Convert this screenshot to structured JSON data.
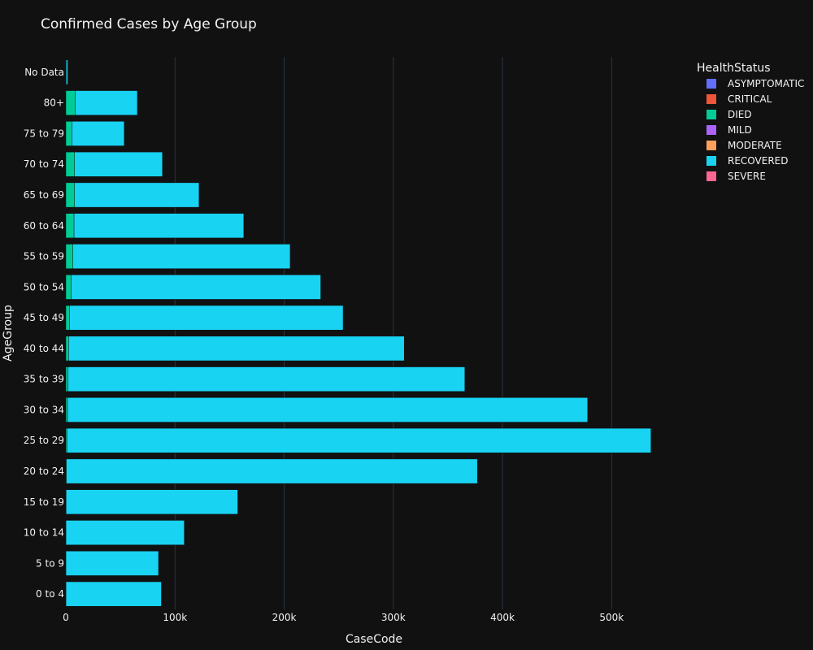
{
  "chart_data": {
    "type": "bar",
    "orientation": "horizontal",
    "barmode": "stack",
    "title": "Confirmed Cases by Age Group",
    "xlabel": "CaseCode",
    "ylabel": "AgeGroup",
    "xlim": [
      0,
      537000
    ],
    "x_ticks": [
      0,
      100000,
      200000,
      300000,
      400000,
      500000
    ],
    "x_tick_labels": [
      "0",
      "100k",
      "200k",
      "300k",
      "400k",
      "500k"
    ],
    "grid": "vertical",
    "legend_title": "HealthStatus",
    "legend_position": "top-right",
    "categories": [
      "0 to 4",
      "5 to 9",
      "10 to 14",
      "15 to 19",
      "20 to 24",
      "25 to 29",
      "30 to 34",
      "35 to 39",
      "40 to 44",
      "45 to 49",
      "50 to 54",
      "55 to 59",
      "60 to 64",
      "65 to 69",
      "70 to 74",
      "75 to 79",
      "80+",
      "No Data"
    ],
    "series": [
      {
        "name": "ASYMPTOMATIC",
        "color": "#636efa",
        "values": [
          0,
          0,
          0,
          0,
          0,
          0,
          0,
          0,
          0,
          0,
          0,
          0,
          0,
          0,
          0,
          0,
          0,
          0
        ]
      },
      {
        "name": "CRITICAL",
        "color": "#ef553b",
        "values": [
          0,
          0,
          0,
          0,
          0,
          0,
          0,
          0,
          0,
          0,
          0,
          0,
          0,
          0,
          0,
          0,
          0,
          0
        ]
      },
      {
        "name": "DIED",
        "color": "#00cc96",
        "values": [
          100,
          60,
          80,
          200,
          500,
          900,
          1500,
          2000,
          2500,
          3500,
          5000,
          6500,
          7500,
          8000,
          8000,
          5500,
          8500,
          300
        ]
      },
      {
        "name": "MILD",
        "color": "#ab63fa",
        "values": [
          0,
          0,
          0,
          0,
          0,
          0,
          0,
          0,
          0,
          0,
          0,
          0,
          0,
          0,
          0,
          0,
          0,
          0
        ]
      },
      {
        "name": "MODERATE",
        "color": "#ffa15a",
        "values": [
          0,
          0,
          0,
          0,
          0,
          0,
          0,
          0,
          0,
          0,
          0,
          0,
          0,
          0,
          0,
          0,
          0,
          0
        ]
      },
      {
        "name": "RECOVERED",
        "color": "#19d3f3",
        "values": [
          87400,
          84840,
          108420,
          157300,
          376500,
          535100,
          476500,
          363500,
          307500,
          250500,
          228500,
          199000,
          155500,
          114000,
          80500,
          48000,
          57000,
          1500
        ]
      },
      {
        "name": "SEVERE",
        "color": "#ff6692",
        "values": [
          0,
          0,
          0,
          0,
          0,
          0,
          0,
          0,
          0,
          0,
          0,
          0,
          0,
          0,
          0,
          0,
          0,
          0
        ]
      }
    ]
  },
  "colors": {
    "background": "#111111",
    "grid": "#283442",
    "text": "#f2f2f2"
  }
}
